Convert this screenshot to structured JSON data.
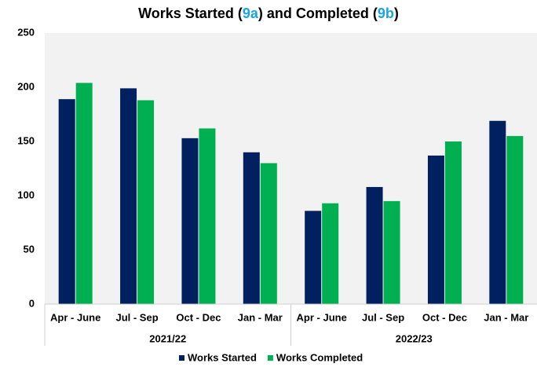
{
  "chart_data": {
    "type": "bar",
    "title": [
      "Works Started (",
      "9a",
      ") and Completed (",
      "9b",
      ")"
    ],
    "title_colors": [
      "#000000",
      "#1aa5e0",
      "#000000",
      "#1aa5e0",
      "#000000"
    ],
    "groups": [
      {
        "label": "2021/22",
        "categories": [
          "Apr - June",
          "Jul - Sep",
          "Oct - Dec",
          "Jan - Mar"
        ]
      },
      {
        "label": "2022/23",
        "categories": [
          "Apr - June",
          "Jul - Sep",
          "Oct - Dec",
          "Jan - Mar"
        ]
      }
    ],
    "series": [
      {
        "name": "Works Started",
        "color": "#002060",
        "values": [
          189,
          199,
          153,
          140,
          86,
          108,
          137,
          169
        ]
      },
      {
        "name": "Works Completed",
        "color": "#00b050",
        "values": [
          204,
          188,
          162,
          130,
          93,
          95,
          150,
          155
        ]
      }
    ],
    "ylim": [
      0,
      250
    ],
    "yticks": [
      0,
      50,
      100,
      150,
      200,
      250
    ],
    "plot_background": "#f2f2f2",
    "legend": "bottom"
  }
}
